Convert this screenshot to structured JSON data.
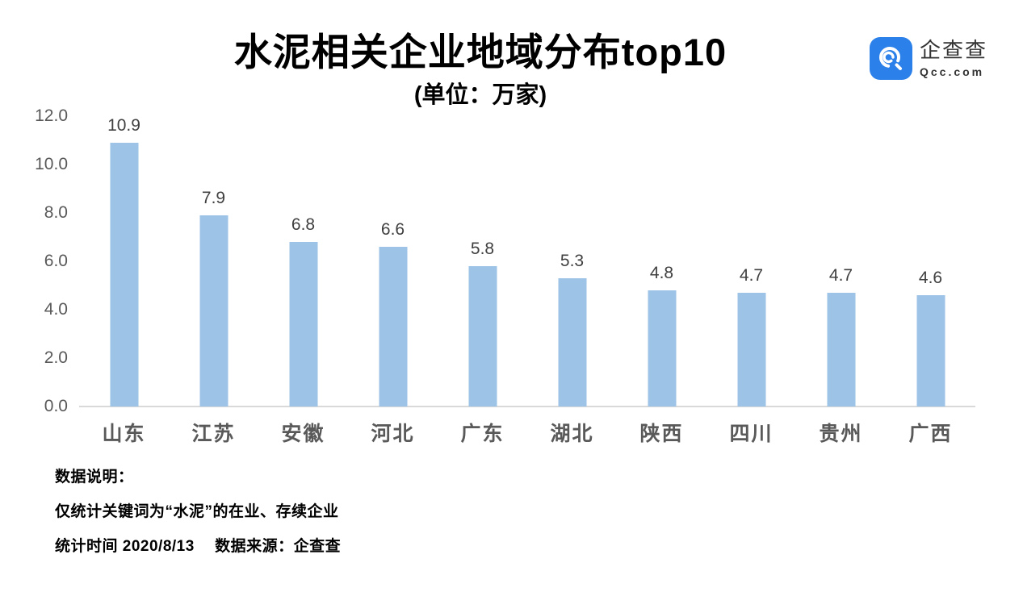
{
  "header": {
    "title": "水泥相关企业地域分布top10",
    "subtitle": "(单位：万家)",
    "logo": {
      "name": "企查查",
      "domain": "Qcc.com",
      "brand_color": "#2b80e9"
    }
  },
  "chart_data": {
    "type": "bar",
    "title": "水泥相关企业地域分布top10",
    "subtitle": "(单位：万家)",
    "categories": [
      "山东",
      "江苏",
      "安徽",
      "河北",
      "广东",
      "湖北",
      "陕西",
      "四川",
      "贵州",
      "广西"
    ],
    "values": [
      10.9,
      7.9,
      6.8,
      6.6,
      5.8,
      5.3,
      4.8,
      4.7,
      4.7,
      4.6
    ],
    "value_labels": [
      "10.9",
      "7.9",
      "6.8",
      "6.6",
      "5.8",
      "5.3",
      "4.8",
      "4.7",
      "4.7",
      "4.6"
    ],
    "xlabel": "",
    "ylabel": "",
    "ylim": [
      0,
      12
    ],
    "yticks": [
      0,
      2,
      4,
      6,
      8,
      10,
      12
    ],
    "ytick_labels": [
      "0.0",
      "2.0",
      "4.0",
      "6.0",
      "8.0",
      "10.0",
      "12.0"
    ],
    "grid": false,
    "legend": false,
    "bar_color": "#9dc3e6",
    "axis_line_color": "#d9d9d9"
  },
  "footnotes": {
    "heading": "数据说明：",
    "line1": "仅统计关键词为“水泥”的在业、存续企业",
    "line2": "统计时间 2020/8/13　 数据来源：企查查"
  }
}
